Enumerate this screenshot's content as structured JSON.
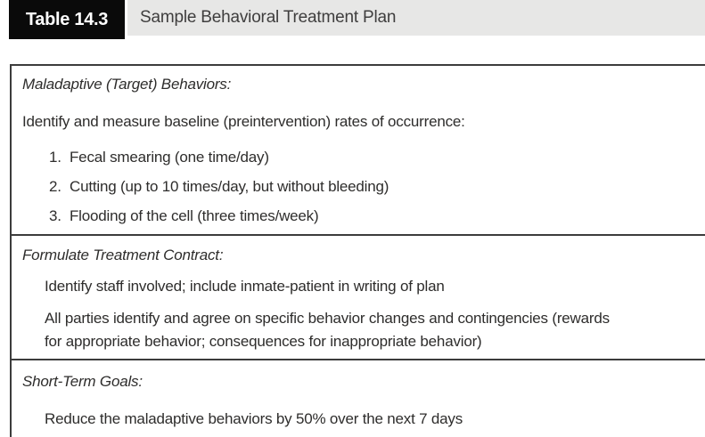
{
  "header": {
    "table_label": "Table 14.3",
    "table_title": "Sample Behavioral Treatment Plan"
  },
  "sections": [
    {
      "heading": "Maladaptive (Target) Behaviors:",
      "intro": "Identify and measure baseline (preintervention) rates of occurrence:",
      "list": [
        {
          "marker": "1.",
          "text": "Fecal smearing (one time/day)"
        },
        {
          "marker": "2.",
          "text": "Cutting (up to 10 times/day, but without bleeding)"
        },
        {
          "marker": "3.",
          "text": "Flooding of the cell (three times/week)"
        }
      ]
    },
    {
      "heading": "Formulate Treatment Contract:",
      "staff_line": "Identify staff involved; include inmate-patient in writing of plan",
      "paragraph_lines": [
        "All parties identify and agree on specific behavior changes and contingencies (rewards",
        "for appropriate behavior; consequences for inappropriate behavior)"
      ]
    },
    {
      "heading": "Short-Term Goals:",
      "goal_line": "Reduce the maladaptive behaviors by 50% over the next 7 days"
    }
  ],
  "colors": {
    "tab_background": "#0a0a0a",
    "tab_text": "#ffffff",
    "title_bar_background": "#e7e7e6",
    "body_text": "#2e2d2c",
    "border": "#3c3c3c"
  }
}
